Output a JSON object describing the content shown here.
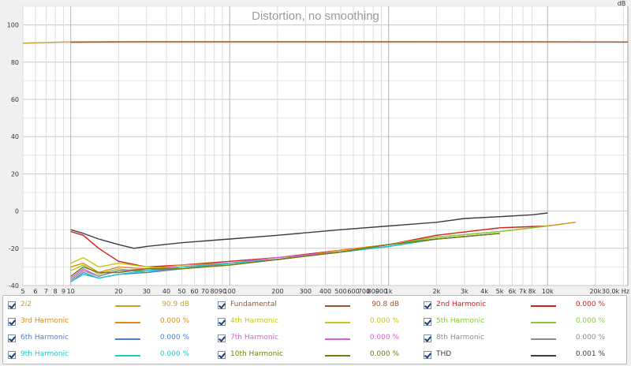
{
  "chart_data": {
    "type": "line",
    "title": "Distortion, no smoothing",
    "ylabel": "dB",
    "xlabel": "",
    "x_scale": "log",
    "xlim": [
      5,
      32000
    ],
    "ylim": [
      -40,
      110
    ],
    "grid": true,
    "xticks": [
      {
        "v": 5,
        "t": "5"
      },
      {
        "v": 6,
        "t": "6"
      },
      {
        "v": 7,
        "t": "7"
      },
      {
        "v": 8,
        "t": "8"
      },
      {
        "v": 9,
        "t": "9"
      },
      {
        "v": 10,
        "t": "10"
      },
      {
        "v": 20,
        "t": "20"
      },
      {
        "v": 30,
        "t": "30"
      },
      {
        "v": 40,
        "t": "40"
      },
      {
        "v": 50,
        "t": "50"
      },
      {
        "v": 60,
        "t": "60"
      },
      {
        "v": 70,
        "t": "70"
      },
      {
        "v": 80,
        "t": "80"
      },
      {
        "v": 90,
        "t": "90"
      },
      {
        "v": 100,
        "t": "100"
      },
      {
        "v": 200,
        "t": "200"
      },
      {
        "v": 300,
        "t": "300"
      },
      {
        "v": 400,
        "t": "400"
      },
      {
        "v": 500,
        "t": "500"
      },
      {
        "v": 600,
        "t": "600"
      },
      {
        "v": 700,
        "t": "700"
      },
      {
        "v": 800,
        "t": "800"
      },
      {
        "v": 900,
        "t": "900"
      },
      {
        "v": 1000,
        "t": "1k"
      },
      {
        "v": 2000,
        "t": "2k"
      },
      {
        "v": 3000,
        "t": "3k"
      },
      {
        "v": 4000,
        "t": "4k"
      },
      {
        "v": 5000,
        "t": "5k"
      },
      {
        "v": 6000,
        "t": "6k"
      },
      {
        "v": 7000,
        "t": "7k"
      },
      {
        "v": 8000,
        "t": "8k"
      },
      {
        "v": 10000,
        "t": "10k"
      },
      {
        "v": 20000,
        "t": "20k"
      },
      {
        "v": 30000,
        "t": "30.0k Hz"
      }
    ],
    "yticks": [
      {
        "v": 100,
        "t": "100"
      },
      {
        "v": 80,
        "t": "80"
      },
      {
        "v": 60,
        "t": "60"
      },
      {
        "v": 40,
        "t": "40"
      },
      {
        "v": 20,
        "t": "20"
      },
      {
        "v": 0,
        "t": "0"
      },
      {
        "v": -20,
        "t": "-20"
      },
      {
        "v": -40,
        "t": "-40"
      }
    ],
    "series": [
      {
        "name": "2i2",
        "color": "#c8a032",
        "value": "90.9 dB",
        "x": [
          5,
          10,
          30,
          100,
          1000,
          10000,
          32000
        ],
        "y": [
          90.2,
          90.9,
          91.0,
          91.0,
          91.0,
          90.9,
          90.8
        ]
      },
      {
        "name": "Fundamental",
        "color": "#a0522d",
        "value": "90.8 dB",
        "x": [
          10,
          30,
          100,
          1000,
          10000,
          32000
        ],
        "y": [
          90.7,
          90.9,
          90.9,
          90.9,
          90.9,
          90.8
        ]
      },
      {
        "name": "2nd Harmonic",
        "color": "#d21e1e",
        "value": "0.000 %",
        "x": [
          10,
          12,
          15,
          20,
          30,
          50,
          100,
          200,
          500,
          1000,
          2000,
          5000,
          10000
        ],
        "y": [
          -11,
          -13,
          -20,
          -27,
          -30,
          -29,
          -27,
          -25,
          -21,
          -18,
          -13,
          -9,
          -8
        ]
      },
      {
        "name": "3rd Harmonic",
        "color": "#e08c14",
        "value": "0.000 %",
        "x": [
          10,
          12,
          15,
          20,
          30,
          50,
          100,
          200,
          500,
          1000,
          2000,
          5000,
          10000,
          15000
        ],
        "y": [
          -30,
          -28,
          -33,
          -30,
          -31,
          -29,
          -28,
          -26,
          -21,
          -18,
          -14,
          -11,
          -8,
          -6
        ]
      },
      {
        "name": "4th Harmonic",
        "color": "#c8c814",
        "value": "0.000 %",
        "x": [
          10,
          12,
          15,
          20,
          30,
          50,
          100,
          200,
          500,
          1000,
          2000,
          5000,
          10000
        ],
        "y": [
          -28,
          -25,
          -30,
          -28,
          -30,
          -31,
          -28,
          -25,
          -22,
          -18,
          -14,
          -11,
          -8
        ]
      },
      {
        "name": "5th Harmonic",
        "color": "#8cc83c",
        "value": "0.000 %",
        "x": [
          10,
          12,
          15,
          20,
          30,
          50,
          100,
          200,
          500,
          1000,
          2000,
          5000,
          10000
        ],
        "y": [
          -32,
          -29,
          -34,
          -31,
          -33,
          -30,
          -29,
          -26,
          -22,
          -18,
          -14,
          -11,
          -8
        ]
      },
      {
        "name": "6th Harmonic",
        "color": "#4682dc",
        "value": "0.000 %",
        "x": [
          10,
          12,
          15,
          20,
          30,
          50,
          100,
          200,
          500,
          1000,
          2000,
          5000
        ],
        "y": [
          -38,
          -33,
          -36,
          -34,
          -33,
          -31,
          -28,
          -26,
          -22,
          -19,
          -15,
          -12
        ]
      },
      {
        "name": "7th Harmonic",
        "color": "#dc5adc",
        "value": "0.000 %",
        "x": [
          10,
          12,
          15,
          20,
          30,
          50,
          100,
          200,
          500,
          1000,
          2000,
          5000
        ],
        "y": [
          -36,
          -31,
          -35,
          -32,
          -31,
          -30,
          -28,
          -25,
          -22,
          -19,
          -15,
          -12
        ]
      },
      {
        "name": "8th Harmonic",
        "color": "#8c8c8c",
        "value": "0.000 %",
        "x": [
          10,
          12,
          15,
          20,
          30,
          50,
          100,
          200,
          500,
          1000,
          2000,
          5000
        ],
        "y": [
          -37,
          -32,
          -35,
          -32,
          -32,
          -31,
          -28,
          -26,
          -22,
          -18,
          -15,
          -12
        ]
      },
      {
        "name": "9th Harmonic",
        "color": "#1ec8c8",
        "value": "0.000 %",
        "x": [
          10,
          12,
          15,
          20,
          30,
          50,
          100,
          200,
          500,
          1000,
          2000,
          5000
        ],
        "y": [
          -38,
          -34,
          -36,
          -34,
          -32,
          -30,
          -28,
          -26,
          -22,
          -19,
          -15,
          -12
        ]
      },
      {
        "name": "10th Harmonic",
        "color": "#787814",
        "value": "0.000 %",
        "x": [
          10,
          12,
          15,
          20,
          30,
          50,
          100,
          200,
          500,
          1000,
          2000,
          5000
        ],
        "y": [
          -35,
          -30,
          -33,
          -33,
          -31,
          -31,
          -29,
          -26,
          -22,
          -18,
          -15,
          -12
        ]
      },
      {
        "name": "THD",
        "color": "#3c3c3c",
        "value": "0.001 %",
        "x": [
          10,
          12,
          15,
          20,
          25,
          30,
          50,
          100,
          200,
          500,
          1000,
          2000,
          3000,
          5000,
          8000,
          10000
        ],
        "y": [
          -10,
          -12,
          -15,
          -18,
          -20,
          -19,
          -17,
          -15,
          -13,
          -10,
          -8,
          -6,
          -4,
          -3,
          -2,
          -1
        ]
      }
    ]
  }
}
